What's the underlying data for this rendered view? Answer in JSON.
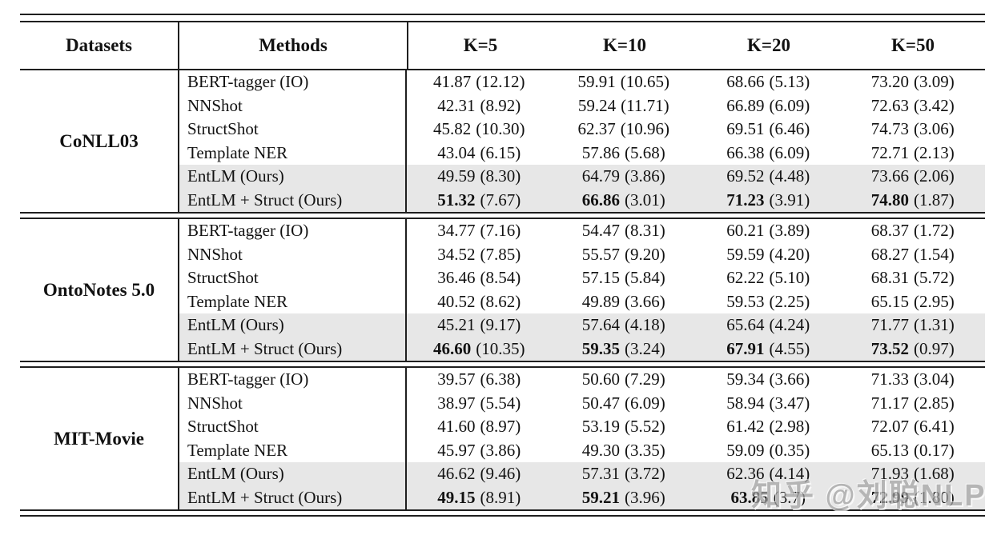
{
  "header": {
    "datasets": "Datasets",
    "methods": "Methods",
    "k5": "K=5",
    "k10": "K=10",
    "k20": "K=20",
    "k50": "K=50"
  },
  "sections": [
    {
      "dataset": "CoNLL03",
      "rows": [
        {
          "method": "BERT-tagger (IO)",
          "k5": [
            "41.87",
            "(12.12)"
          ],
          "k10": [
            "59.91",
            "(10.65)"
          ],
          "k20": [
            "68.66",
            "(5.13)"
          ],
          "k50": [
            "73.20",
            "(3.09)"
          ]
        },
        {
          "method": "NNShot",
          "k5": [
            "42.31",
            "(8.92)"
          ],
          "k10": [
            "59.24",
            "(11.71)"
          ],
          "k20": [
            "66.89",
            "(6.09)"
          ],
          "k50": [
            "72.63",
            "(3.42)"
          ]
        },
        {
          "method": "StructShot",
          "k5": [
            "45.82",
            "(10.30)"
          ],
          "k10": [
            "62.37",
            "(10.96)"
          ],
          "k20": [
            "69.51",
            "(6.46)"
          ],
          "k50": [
            "74.73",
            "(3.06)"
          ]
        },
        {
          "method": "Template NER",
          "k5": [
            "43.04",
            "(6.15)"
          ],
          "k10": [
            "57.86",
            "(5.68)"
          ],
          "k20": [
            "66.38",
            "(6.09)"
          ],
          "k50": [
            "72.71",
            "(2.13)"
          ]
        },
        {
          "method": "EntLM (Ours)",
          "k5": [
            "49.59",
            "(8.30)"
          ],
          "k10": [
            "64.79",
            "(3.86)"
          ],
          "k20": [
            "69.52",
            "(4.48)"
          ],
          "k50": [
            "73.66",
            "(2.06)"
          ]
        },
        {
          "method": "EntLM + Struct (Ours)",
          "k5": [
            "51.32",
            "(7.67)"
          ],
          "k10": [
            "66.86",
            "(3.01)"
          ],
          "k20": [
            "71.23",
            "(3.91)"
          ],
          "k50": [
            "74.80",
            "(1.87)"
          ]
        }
      ]
    },
    {
      "dataset": "OntoNotes 5.0",
      "rows": [
        {
          "method": "BERT-tagger (IO)",
          "k5": [
            "34.77",
            "(7.16)"
          ],
          "k10": [
            "54.47",
            "(8.31)"
          ],
          "k20": [
            "60.21",
            "(3.89)"
          ],
          "k50": [
            "68.37",
            "(1.72)"
          ]
        },
        {
          "method": "NNShot",
          "k5": [
            "34.52",
            "(7.85)"
          ],
          "k10": [
            "55.57",
            "(9.20)"
          ],
          "k20": [
            "59.59",
            "(4.20)"
          ],
          "k50": [
            "68.27",
            "(1.54)"
          ]
        },
        {
          "method": "StructShot",
          "k5": [
            "36.46",
            "(8.54)"
          ],
          "k10": [
            "57.15",
            "(5.84)"
          ],
          "k20": [
            "62.22",
            "(5.10)"
          ],
          "k50": [
            "68.31",
            "(5.72)"
          ]
        },
        {
          "method": "Template NER",
          "k5": [
            "40.52",
            "(8.62)"
          ],
          "k10": [
            "49.89",
            "(3.66)"
          ],
          "k20": [
            "59.53",
            "(2.25)"
          ],
          "k50": [
            "65.15",
            "(2.95)"
          ]
        },
        {
          "method": "EntLM (Ours)",
          "k5": [
            "45.21",
            "(9.17)"
          ],
          "k10": [
            "57.64",
            "(4.18)"
          ],
          "k20": [
            "65.64",
            "(4.24)"
          ],
          "k50": [
            "71.77",
            "(1.31)"
          ]
        },
        {
          "method": "EntLM + Struct (Ours)",
          "k5": [
            "46.60",
            "(10.35)"
          ],
          "k10": [
            "59.35",
            "(3.24)"
          ],
          "k20": [
            "67.91",
            "(4.55)"
          ],
          "k50": [
            "73.52",
            "(0.97)"
          ]
        }
      ]
    },
    {
      "dataset": "MIT-Movie",
      "rows": [
        {
          "method": "BERT-tagger (IO)",
          "k5": [
            "39.57",
            "(6.38)"
          ],
          "k10": [
            "50.60",
            "(7.29)"
          ],
          "k20": [
            "59.34",
            "(3.66)"
          ],
          "k50": [
            "71.33",
            "(3.04)"
          ]
        },
        {
          "method": "NNShot",
          "k5": [
            "38.97",
            "(5.54)"
          ],
          "k10": [
            "50.47",
            "(6.09)"
          ],
          "k20": [
            "58.94",
            "(3.47)"
          ],
          "k50": [
            "71.17",
            "(2.85)"
          ]
        },
        {
          "method": "StructShot",
          "k5": [
            "41.60",
            "(8.97)"
          ],
          "k10": [
            "53.19",
            "(5.52)"
          ],
          "k20": [
            "61.42",
            "(2.98)"
          ],
          "k50": [
            "72.07",
            "(6.41)"
          ]
        },
        {
          "method": "Template NER",
          "k5": [
            "45.97",
            "(3.86)"
          ],
          "k10": [
            "49.30",
            "(3.35)"
          ],
          "k20": [
            "59.09",
            "(0.35)"
          ],
          "k50": [
            "65.13",
            "(0.17)"
          ]
        },
        {
          "method": "EntLM (Ours)",
          "k5": [
            "46.62",
            "(9.46)"
          ],
          "k10": [
            "57.31",
            "(3.72)"
          ],
          "k20": [
            "62.36",
            "(4.14)"
          ],
          "k50": [
            "71.93",
            "(1.68)"
          ]
        },
        {
          "method": "EntLM + Struct (Ours)",
          "k5": [
            "49.15",
            "(8.91)"
          ],
          "k10": [
            "59.21",
            "(3.96)"
          ],
          "k20": [
            "63.85",
            "(3.7)"
          ],
          "k50": [
            "72.99",
            "(1.80)"
          ]
        }
      ]
    }
  ],
  "watermark": "知乎 @刘聪NLP",
  "colors": {
    "row_shade": "#e7e7e7",
    "rule": "#1f1f1f",
    "watermark_gray": "#a3a3a3"
  }
}
